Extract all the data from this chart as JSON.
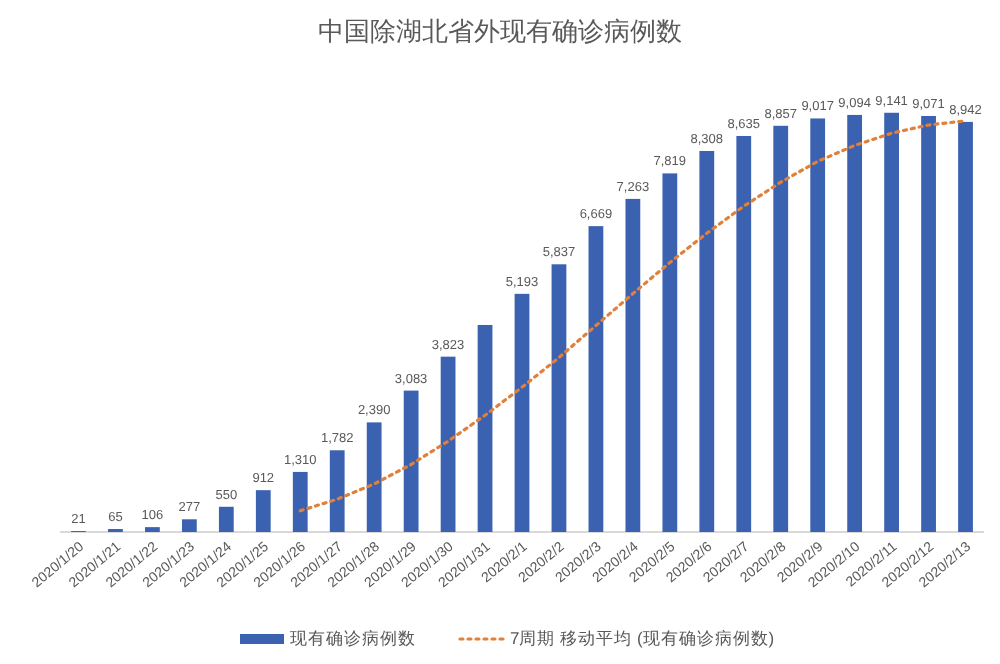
{
  "chart_data": {
    "type": "bar",
    "title": "中国除湖北省外现有确诊病例数",
    "categories": [
      "2020/1/20",
      "2020/1/21",
      "2020/1/22",
      "2020/1/23",
      "2020/1/24",
      "2020/1/25",
      "2020/1/26",
      "2020/1/27",
      "2020/1/28",
      "2020/1/29",
      "2020/1/30",
      "2020/1/31",
      "2020/2/1",
      "2020/2/2",
      "2020/2/3",
      "2020/2/4",
      "2020/2/5",
      "2020/2/6",
      "2020/2/7",
      "2020/2/8",
      "2020/2/9",
      "2020/2/10",
      "2020/2/11",
      "2020/2/12",
      "2020/2/13"
    ],
    "legend": "bottom",
    "series": [
      {
        "name": "现有确诊病例数",
        "color": "#3a62b0",
        "values": [
          21,
          65,
          106,
          277,
          550,
          912,
          1310,
          1782,
          2390,
          3083,
          3823,
          4514,
          5193,
          5837,
          6669,
          7263,
          7819,
          8308,
          8635,
          8857,
          9017,
          9094,
          9141,
          9071,
          8942
        ],
        "value_labels": [
          "21",
          "65",
          "106",
          "277",
          "550",
          "912",
          "1,310",
          "1,782",
          "2,390",
          "3,083",
          "3,823",
          null,
          "5,193",
          "5,837",
          "6,669",
          "7,263",
          "7,819",
          "8,308",
          "8,635",
          "8,857",
          "9,017",
          "9,094",
          "9,141",
          "9,071",
          "8,942"
        ]
      },
      {
        "name": "7周期 移动平均 (现有确诊病例数)",
        "type": "line",
        "color": "#e0803a",
        "line_style": "dotted",
        "values": [
          null,
          null,
          null,
          null,
          null,
          null,
          463,
          715,
          1047,
          1472,
          1979,
          2545,
          3156,
          3803,
          4501,
          5197,
          5874,
          6515,
          7103,
          7627,
          8081,
          8428,
          8696,
          8875,
          8965
        ]
      }
    ]
  }
}
